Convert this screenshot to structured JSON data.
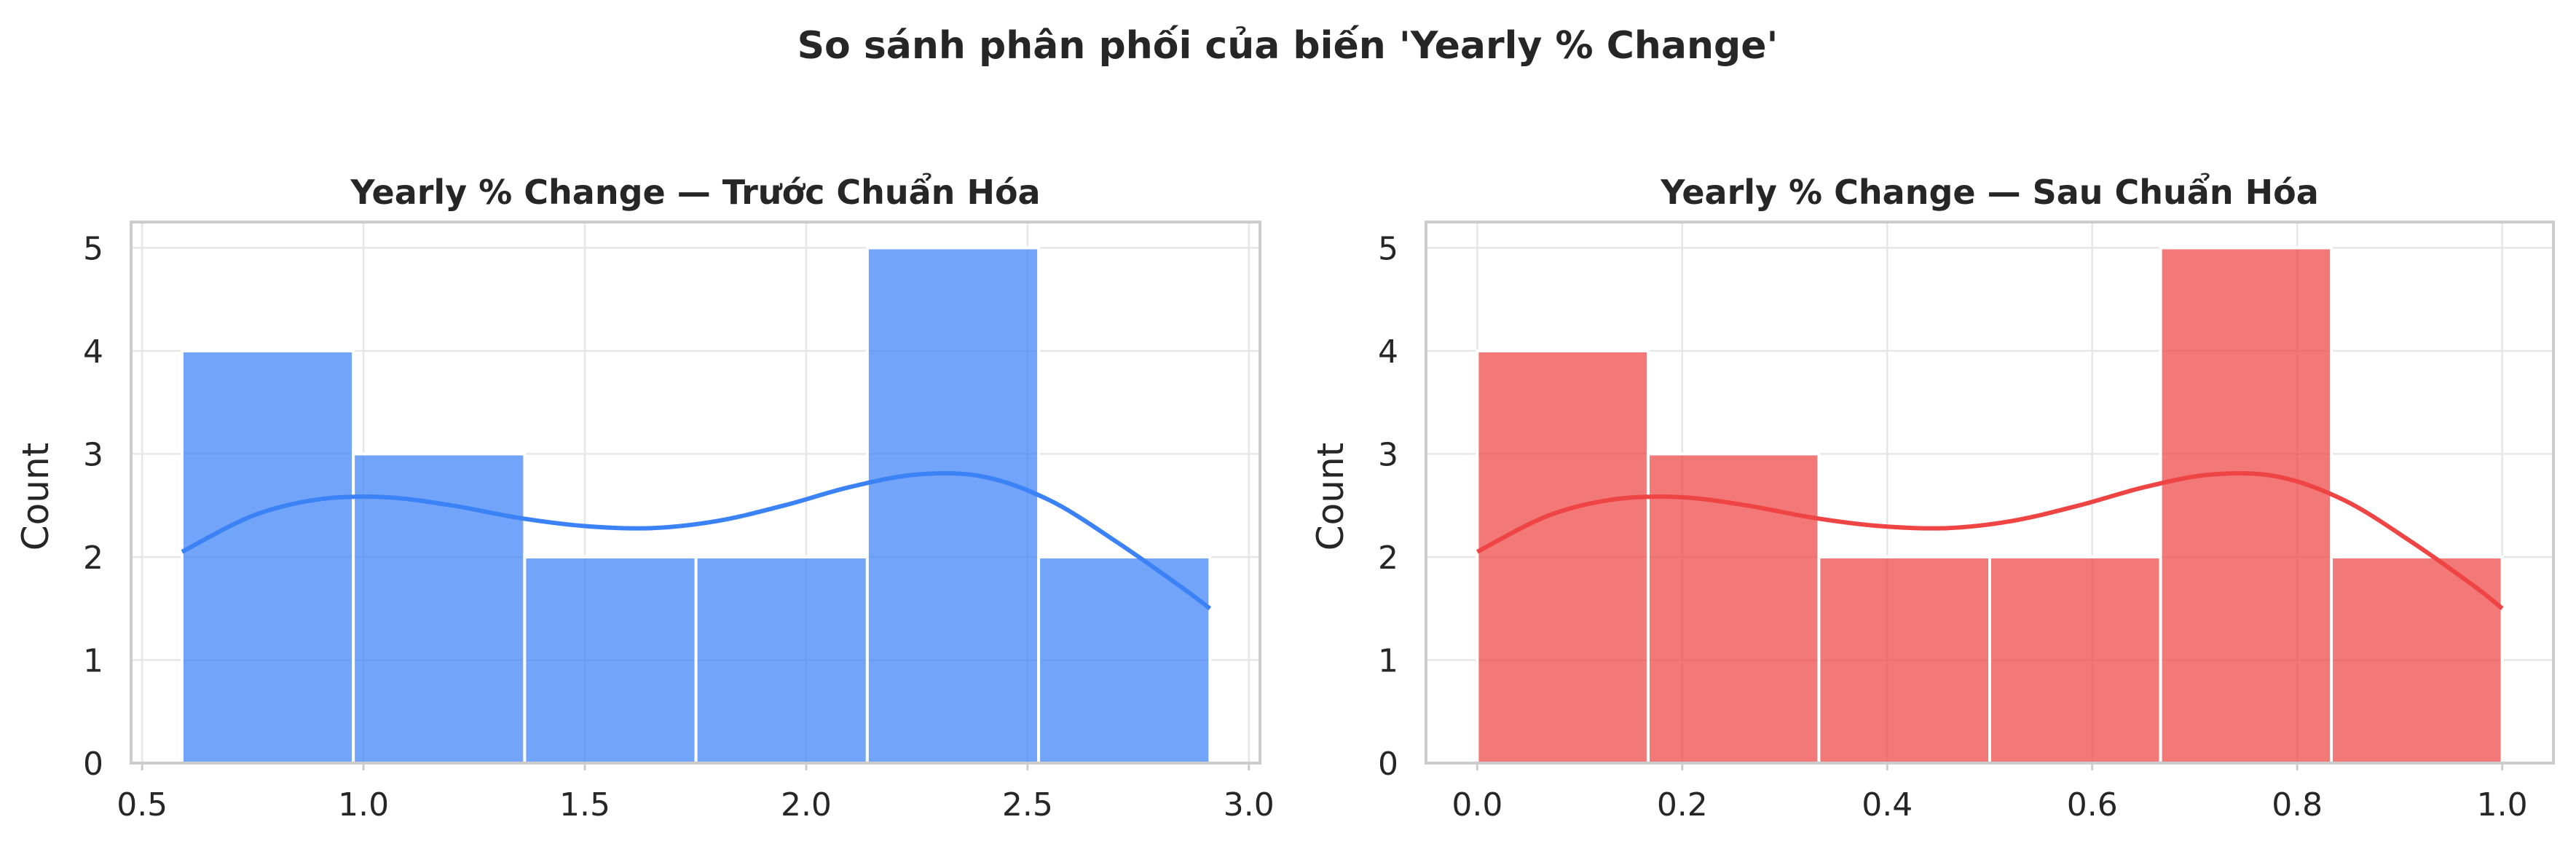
{
  "figure": {
    "suptitle": "So sánh phân phối của biến 'Yearly % Change'"
  },
  "chart_data": [
    {
      "type": "bar",
      "subtype": "histogram-with-kde",
      "title": "Yearly % Change — Trước Chuẩn Hóa",
      "xlabel": "",
      "ylabel": "Count",
      "xlim": [
        0.475,
        3.025
      ],
      "ylim": [
        0,
        5.25
      ],
      "xticks": [
        "0.5",
        "1.0",
        "1.5",
        "2.0",
        "2.5",
        "3.0"
      ],
      "yticks": [
        "0",
        "1",
        "2",
        "3",
        "4",
        "5"
      ],
      "grid": true,
      "color": "#3b82f6",
      "bin_edges": [
        0.59,
        0.977,
        1.364,
        1.751,
        2.138,
        2.525,
        2.912
      ],
      "counts": [
        4,
        3,
        2,
        2,
        5,
        2
      ],
      "kde": {
        "x": [
          0.59,
          0.75,
          0.9,
          1.05,
          1.2,
          1.35,
          1.5,
          1.65,
          1.8,
          1.95,
          2.1,
          2.25,
          2.4,
          2.55,
          2.7,
          2.85,
          2.912
        ],
        "y": [
          2.05,
          2.4,
          2.56,
          2.58,
          2.5,
          2.38,
          2.3,
          2.28,
          2.35,
          2.5,
          2.68,
          2.8,
          2.78,
          2.55,
          2.15,
          1.7,
          1.5
        ]
      }
    },
    {
      "type": "bar",
      "subtype": "histogram-with-kde",
      "title": "Yearly % Change — Sau Chuẩn Hóa",
      "xlabel": "",
      "ylabel": "Count",
      "xlim": [
        -0.05,
        1.05
      ],
      "ylim": [
        0,
        5.25
      ],
      "xticks": [
        "0.0",
        "0.2",
        "0.4",
        "0.6",
        "0.8",
        "1.0"
      ],
      "yticks": [
        "0",
        "1",
        "2",
        "3",
        "4",
        "5"
      ],
      "grid": true,
      "color": "#ef4444",
      "bin_edges": [
        0.0,
        0.1667,
        0.3333,
        0.5,
        0.6667,
        0.8333,
        1.0
      ],
      "counts": [
        4,
        3,
        2,
        2,
        5,
        2
      ],
      "kde": {
        "x": [
          0.0,
          0.069,
          0.134,
          0.199,
          0.263,
          0.328,
          0.393,
          0.458,
          0.522,
          0.587,
          0.652,
          0.716,
          0.781,
          0.846,
          0.911,
          0.975,
          1.0
        ],
        "y": [
          2.05,
          2.4,
          2.56,
          2.58,
          2.5,
          2.38,
          2.3,
          2.28,
          2.35,
          2.5,
          2.68,
          2.8,
          2.78,
          2.55,
          2.15,
          1.7,
          1.5
        ]
      }
    }
  ]
}
